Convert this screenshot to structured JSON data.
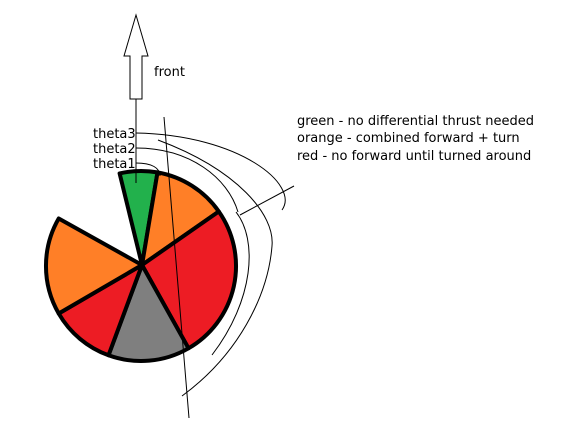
{
  "colors": {
    "green": "#22b14c",
    "orange": "#ff7f27",
    "red": "#ed1c24",
    "gray": "#7f7f7f",
    "outline": "#000000"
  },
  "arrow": {
    "label": "front"
  },
  "angle_labels": {
    "theta3": "theta3",
    "theta2": "theta2",
    "theta1": "theta1"
  },
  "legend": {
    "green": "green - no differential thrust needed",
    "orange": "orange - combined forward + turn",
    "red": "red - no forward until turned around"
  },
  "sectors": [
    {
      "name": "green-sector",
      "color": "green"
    },
    {
      "name": "orange-right-sector",
      "color": "orange"
    },
    {
      "name": "red-right-sector",
      "color": "red"
    },
    {
      "name": "gray-rear-sector",
      "color": "gray"
    },
    {
      "name": "red-left-sector",
      "color": "red"
    },
    {
      "name": "orange-left-sector",
      "color": "orange"
    }
  ]
}
